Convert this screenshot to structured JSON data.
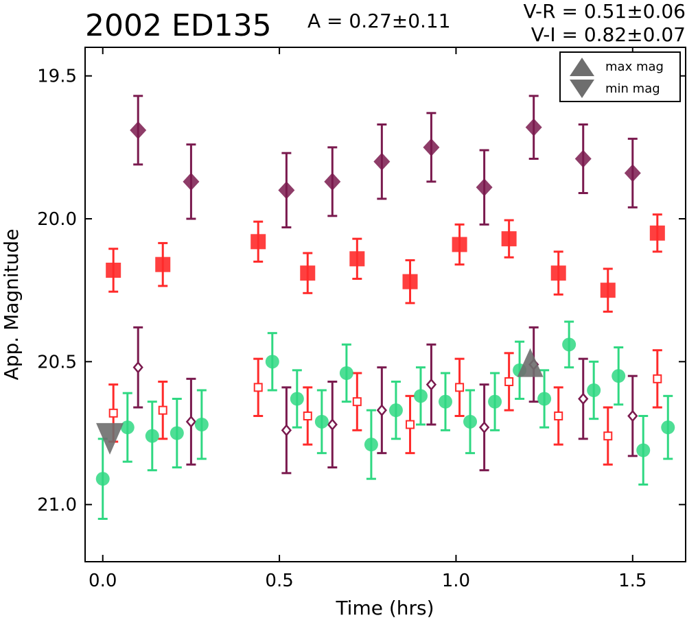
{
  "header": {
    "title": "2002 ED135",
    "amplitude": "A  = 0.27±0.11",
    "v_minus_r": "V-R = 0.51±0.06",
    "v_minus_i": "V-I  = 0.82±0.07"
  },
  "chart_data": {
    "type": "scatter",
    "xlabel": "Time (hrs)",
    "ylabel": "App. Magnitude",
    "xlim": [
      -0.05,
      1.65
    ],
    "ylim": [
      21.2,
      19.4
    ],
    "y_inverted": true,
    "x_ticks": [
      0.0,
      0.5,
      1.0,
      1.5
    ],
    "x_tick_labels": [
      "0.0",
      "0.5",
      "1.0",
      "1.5"
    ],
    "y_ticks": [
      19.5,
      20.0,
      20.5,
      21.0
    ],
    "y_tick_labels": [
      "19.5",
      "20.0",
      "20.5",
      "21.0"
    ],
    "grid": false,
    "legend": {
      "placement": "top-right",
      "entries": [
        {
          "label": "max mag",
          "marker": "triangle-up"
        },
        {
          "label": "min mag",
          "marker": "triangle-down"
        }
      ]
    },
    "colors": {
      "purple": "#7a1a4e",
      "red": "#ff2a2a",
      "green": "#2fd882",
      "gray": "#6e6e6e"
    },
    "series": [
      {
        "marker": "diamond-filled",
        "color": "#7a1a4e",
        "x": [
          0.1,
          0.25,
          0.52,
          0.65,
          0.79,
          0.93,
          1.08,
          1.22,
          1.36,
          1.5
        ],
        "y": [
          19.69,
          19.87,
          19.9,
          19.87,
          19.8,
          19.75,
          19.89,
          19.68,
          19.79,
          19.84
        ],
        "yerr": [
          0.12,
          0.13,
          0.13,
          0.12,
          0.13,
          0.12,
          0.13,
          0.11,
          0.12,
          0.12
        ]
      },
      {
        "marker": "square-filled",
        "color": "#ff2a2a",
        "x": [
          0.03,
          0.17,
          0.44,
          0.58,
          0.72,
          0.87,
          1.01,
          1.15,
          1.29,
          1.43,
          1.57
        ],
        "y": [
          20.18,
          20.16,
          20.08,
          20.19,
          20.14,
          20.22,
          20.09,
          20.07,
          20.19,
          20.25,
          20.05
        ],
        "yerr": [
          0.075,
          0.075,
          0.07,
          0.07,
          0.07,
          0.075,
          0.07,
          0.065,
          0.075,
          0.075,
          0.065
        ]
      },
      {
        "marker": "diamond-open",
        "color": "#7a1a4e",
        "x": [
          0.1,
          0.25,
          0.52,
          0.65,
          0.79,
          0.93,
          1.08,
          1.22,
          1.36,
          1.5
        ],
        "y": [
          20.52,
          20.71,
          20.74,
          20.72,
          20.67,
          20.58,
          20.73,
          20.51,
          20.63,
          20.69
        ],
        "yerr": [
          0.14,
          0.15,
          0.15,
          0.15,
          0.15,
          0.14,
          0.15,
          0.13,
          0.14,
          0.14
        ]
      },
      {
        "marker": "square-open",
        "color": "#ff2a2a",
        "x": [
          0.03,
          0.17,
          0.44,
          0.58,
          0.72,
          0.87,
          1.01,
          1.15,
          1.29,
          1.43,
          1.57
        ],
        "y": [
          20.68,
          20.67,
          20.59,
          20.69,
          20.64,
          20.72,
          20.59,
          20.57,
          20.69,
          20.76,
          20.56
        ],
        "yerr": [
          0.1,
          0.1,
          0.1,
          0.1,
          0.1,
          0.1,
          0.1,
          0.1,
          0.1,
          0.1,
          0.1
        ]
      },
      {
        "marker": "circle",
        "color": "#2fd882",
        "x": [
          0.0,
          0.07,
          0.14,
          0.21,
          0.28,
          0.48,
          0.55,
          0.62,
          0.69,
          0.76,
          0.83,
          0.9,
          0.97,
          1.04,
          1.11,
          1.18,
          1.25,
          1.32,
          1.39,
          1.46,
          1.53,
          1.6
        ],
        "y": [
          20.91,
          20.73,
          20.76,
          20.75,
          20.72,
          20.5,
          20.63,
          20.71,
          20.54,
          20.79,
          20.67,
          20.62,
          20.64,
          20.71,
          20.64,
          20.53,
          20.63,
          20.44,
          20.6,
          20.55,
          20.81,
          20.73
        ],
        "yerr": [
          0.14,
          0.12,
          0.12,
          0.12,
          0.12,
          0.1,
          0.1,
          0.11,
          0.1,
          0.12,
          0.1,
          0.1,
          0.1,
          0.11,
          0.1,
          0.1,
          0.1,
          0.08,
          0.1,
          0.1,
          0.12,
          0.11
        ]
      },
      {
        "marker": "triangle-down",
        "color": "#6e6e6e",
        "x": [
          0.02
        ],
        "y": [
          20.77
        ]
      },
      {
        "marker": "triangle-up",
        "color": "#6e6e6e",
        "x": [
          1.21
        ],
        "y": [
          20.52
        ]
      }
    ]
  }
}
